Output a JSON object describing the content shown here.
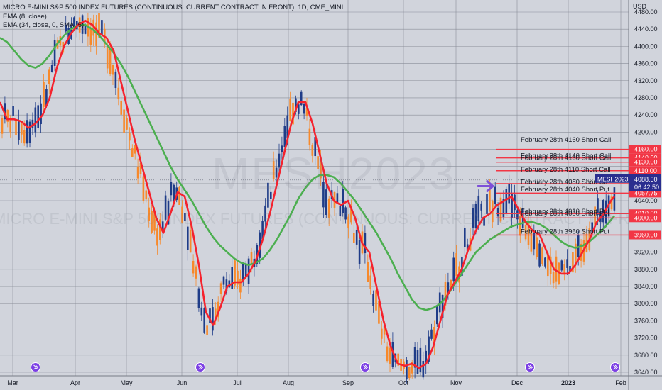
{
  "header": {
    "title": "MICRO E-MINI S&P 500 INDEX FUTURES (CONTINUOUS: CURRENT CONTRACT IN FRONT), 1D, CME_MINI",
    "ema_fast": "EMA (8, close)",
    "ema_slow": "EMA (34, close, 0, SMA, 5)"
  },
  "watermark": {
    "symbol": "MESH2023",
    "description": "MICRO E-MINI S&P 500 INDEX FUTURES (CONTINUOUS: CURRENT CONTRACT IN FRONT)"
  },
  "chart_data": {
    "type": "candlestick",
    "currency": "USD",
    "y_ticks": [
      3640,
      3680,
      3720,
      3760,
      3800,
      3840,
      3880,
      3920,
      3960,
      4000,
      4040,
      4080,
      4120,
      4160,
      4200,
      4240,
      4280,
      4320,
      4360,
      4400,
      4440,
      4480
    ],
    "x_ticks": [
      "Mar",
      "Apr",
      "May",
      "Jun",
      "Jul",
      "Aug",
      "Sep",
      "Oct",
      "Nov",
      "Dec",
      "2023",
      "Feb"
    ],
    "ylim": [
      3630,
      4490
    ],
    "grid": true,
    "series": [
      {
        "name": "EMA (8, close)",
        "color": "#f5222d",
        "x": [
          0,
          10,
          20,
          30,
          40,
          50,
          60,
          70,
          80,
          90,
          100,
          110,
          120,
          130,
          140,
          150,
          160,
          170,
          180,
          190,
          200,
          210,
          220,
          230,
          240,
          250,
          260,
          270,
          280,
          290,
          300,
          310,
          320,
          330,
          340,
          350,
          360,
          370,
          380,
          390,
          400,
          410,
          420,
          430,
          440,
          450,
          460,
          470,
          480,
          490,
          500,
          510,
          520,
          530,
          540,
          550,
          560,
          570,
          580,
          590,
          600,
          610,
          620,
          630,
          640,
          650,
          660,
          670,
          680,
          690,
          700,
          710,
          720,
          730,
          740,
          750,
          760,
          770,
          780,
          790,
          800,
          810,
          820,
          830,
          840,
          850,
          860,
          865
        ],
        "y": [
          4270,
          4230,
          4230,
          4225,
          4210,
          4220,
          4240,
          4280,
          4350,
          4400,
          4430,
          4450,
          4460,
          4450,
          4430,
          4420,
          4390,
          4320,
          4250,
          4180,
          4120,
          4060,
          4000,
          3965,
          4010,
          4060,
          4050,
          3980,
          3890,
          3780,
          3750,
          3790,
          3840,
          3850,
          3850,
          3870,
          3900,
          3950,
          4010,
          4080,
          4150,
          4220,
          4270,
          4270,
          4220,
          4150,
          4080,
          4040,
          4030,
          4040,
          4000,
          3940,
          3920,
          3840,
          3760,
          3700,
          3660,
          3655,
          3660,
          3650,
          3660,
          3700,
          3760,
          3820,
          3850,
          3880,
          3930,
          3970,
          4000,
          4010,
          4030,
          4040,
          4050,
          4020,
          3990,
          3970,
          3960,
          3920,
          3880,
          3870,
          3870,
          3890,
          3920,
          3950,
          3990,
          4010,
          4040,
          4050
        ]
      },
      {
        "name": "EMA (34, close, 0, SMA, 5)",
        "color": "#4caf50",
        "x": [
          0,
          10,
          20,
          30,
          40,
          50,
          60,
          70,
          80,
          90,
          100,
          110,
          120,
          130,
          140,
          150,
          160,
          170,
          180,
          190,
          200,
          210,
          220,
          230,
          240,
          250,
          260,
          270,
          280,
          290,
          300,
          310,
          320,
          330,
          340,
          350,
          360,
          370,
          380,
          390,
          400,
          410,
          420,
          430,
          440,
          450,
          460,
          470,
          480,
          490,
          500,
          510,
          520,
          530,
          540,
          550,
          560,
          570,
          580,
          590,
          600,
          610,
          620,
          630,
          640,
          650,
          660,
          670,
          680,
          690,
          700,
          710,
          720,
          730,
          740,
          750,
          760,
          770,
          780,
          790,
          800,
          810,
          820,
          830,
          840,
          850,
          860,
          865
        ],
        "y": [
          4420,
          4410,
          4390,
          4370,
          4355,
          4350,
          4360,
          4380,
          4405,
          4425,
          4440,
          4450,
          4450,
          4440,
          4425,
          4405,
          4385,
          4360,
          4330,
          4295,
          4260,
          4225,
          4190,
          4155,
          4120,
          4090,
          4065,
          4040,
          4010,
          3980,
          3955,
          3935,
          3920,
          3905,
          3895,
          3890,
          3895,
          3905,
          3925,
          3950,
          3980,
          4010,
          4045,
          4070,
          4090,
          4100,
          4100,
          4095,
          4080,
          4060,
          4040,
          4015,
          3990,
          3965,
          3935,
          3905,
          3870,
          3840,
          3810,
          3790,
          3785,
          3790,
          3800,
          3820,
          3845,
          3870,
          3895,
          3920,
          3935,
          3950,
          3960,
          3970,
          3980,
          3985,
          3990,
          3990,
          3985,
          3975,
          3960,
          3945,
          3935,
          3930,
          3935,
          3945,
          3960,
          3975,
          3995,
          4005
        ]
      }
    ]
  },
  "price_labels": [
    {
      "value": "4160.00",
      "color": "#f23645"
    },
    {
      "value": "4140.00",
      "color": "#f23645"
    },
    {
      "value": "4130.00",
      "color": "#f23645"
    },
    {
      "value": "4110.00",
      "color": "#f23645"
    },
    {
      "value": "4080.00",
      "color": "#f23645"
    },
    {
      "value": "4057.75",
      "color": "#f23645"
    },
    {
      "value": "4010.00",
      "color": "#f23645"
    },
    {
      "value": "4000.00",
      "color": "#f23645"
    },
    {
      "value": "3960.00",
      "color": "#f23645"
    }
  ],
  "current": {
    "symbol": "MESH2023",
    "price": "4088.50",
    "countdown": "06:42:50",
    "color": "#2a2e8f"
  },
  "annotations": [
    {
      "text": "February 28th 4160 Short Call",
      "price": 4182
    },
    {
      "text": "February 28th 4140 Short Call",
      "price": 4145
    },
    {
      "text": "February 28th 4130 Short Call",
      "price": 4140
    },
    {
      "text": "February 28th 4110 Short Call",
      "price": 4113
    },
    {
      "text": "February 28th 4080 Short Str",
      "price": 4084
    },
    {
      "text": "February 28th 4040 Short Put",
      "price": 4067
    },
    {
      "text": "February 28th 4010 Short Put",
      "price": 4015
    },
    {
      "text": "February 28th 4000 Short Put",
      "price": 4010
    },
    {
      "text": "February 28th 3960 Short Put",
      "price": 3968
    }
  ],
  "colors": {
    "up": "#1f3c88",
    "down": "#f7892b",
    "grid": "#878b96",
    "bg": "#d1d4dc",
    "arrow": "#7d4fd8"
  }
}
